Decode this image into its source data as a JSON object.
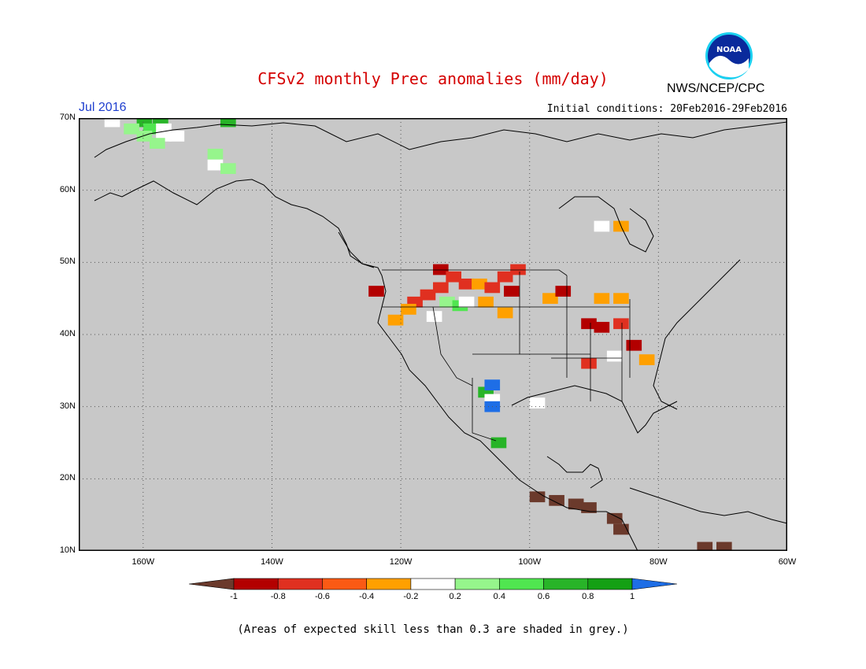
{
  "title": "CFSv2 monthly Prec anomalies (mm/day)",
  "agency": "NWS/NCEP/CPC",
  "logo_text": "NOAA",
  "period": "Jul 2016",
  "initial_conditions": "Initial conditions: 20Feb2016-29Feb2016",
  "footnote": "(Areas of expected skill less than 0.3 are shaded in grey.)",
  "map": {
    "background_color": "#c8c8c8",
    "lon_range": [
      -170,
      -60
    ],
    "lat_range": [
      10,
      70
    ],
    "lat_ticks": [
      {
        "value": 70,
        "label": "70N"
      },
      {
        "value": 60,
        "label": "60N"
      },
      {
        "value": 50,
        "label": "50N"
      },
      {
        "value": 40,
        "label": "40N"
      },
      {
        "value": 30,
        "label": "30N"
      },
      {
        "value": 20,
        "label": "20N"
      },
      {
        "value": 10,
        "label": "10N"
      }
    ],
    "lon_ticks": [
      {
        "value": -160,
        "label": "160W"
      },
      {
        "value": -140,
        "label": "140W"
      },
      {
        "value": -120,
        "label": "120W"
      },
      {
        "value": -100,
        "label": "100W"
      },
      {
        "value": -80,
        "label": "80W"
      },
      {
        "value": -60,
        "label": "60W"
      }
    ],
    "gridlines": "dotted"
  },
  "colorbar": {
    "bins": [
      {
        "color": "#6b3a2c"
      },
      {
        "color": "#b30000"
      },
      {
        "color": "#e03020"
      },
      {
        "color": "#fa5a14"
      },
      {
        "color": "#ffa000"
      },
      {
        "color": "#ffffff"
      },
      {
        "color": "#96f58c"
      },
      {
        "color": "#50e650"
      },
      {
        "color": "#28b428"
      },
      {
        "color": "#14a014"
      },
      {
        "color": "#1e6ee6"
      }
    ],
    "labels": [
      "-1",
      "-0.8",
      "-0.6",
      "-0.4",
      "-0.2",
      "0.2",
      "0.4",
      "0.6",
      "0.8",
      "1"
    ]
  },
  "anomaly_cells": [
    {
      "lon": -165,
      "lat": 69.5,
      "color": "#ffffff"
    },
    {
      "lon": -160,
      "lat": 69.5,
      "color": "#28b428"
    },
    {
      "lon": -157.5,
      "lat": 69.5,
      "color": "#28b428"
    },
    {
      "lon": -147,
      "lat": 70,
      "color": "#50e650"
    },
    {
      "lon": -147,
      "lat": 69.5,
      "color": "#28b428"
    },
    {
      "lon": -162,
      "lat": 68.5,
      "color": "#96f58c"
    },
    {
      "lon": -159,
      "lat": 68.5,
      "color": "#50e650"
    },
    {
      "lon": -157,
      "lat": 68.5,
      "color": "#ffffff"
    },
    {
      "lon": -160,
      "lat": 67.5,
      "color": "#96f58c"
    },
    {
      "lon": -157,
      "lat": 67.5,
      "color": "#ffffff"
    },
    {
      "lon": -155,
      "lat": 67.5,
      "color": "#ffffff"
    },
    {
      "lon": -158,
      "lat": 66.5,
      "color": "#96f58c"
    },
    {
      "lon": -149,
      "lat": 65,
      "color": "#96f58c"
    },
    {
      "lon": -149,
      "lat": 63.5,
      "color": "#ffffff"
    },
    {
      "lon": -147,
      "lat": 63,
      "color": "#96f58c"
    },
    {
      "lon": -114,
      "lat": 49,
      "color": "#b30000"
    },
    {
      "lon": -112,
      "lat": 48,
      "color": "#e03020"
    },
    {
      "lon": -110,
      "lat": 47,
      "color": "#e03020"
    },
    {
      "lon": -108,
      "lat": 47,
      "color": "#ffa000"
    },
    {
      "lon": -106,
      "lat": 46.5,
      "color": "#e03020"
    },
    {
      "lon": -104,
      "lat": 48,
      "color": "#e03020"
    },
    {
      "lon": -102,
      "lat": 49,
      "color": "#e03020"
    },
    {
      "lon": -103,
      "lat": 46,
      "color": "#b30000"
    },
    {
      "lon": -114,
      "lat": 46.5,
      "color": "#e03020"
    },
    {
      "lon": -116,
      "lat": 45.5,
      "color": "#e03020"
    },
    {
      "lon": -118,
      "lat": 44.5,
      "color": "#e03020"
    },
    {
      "lon": -119,
      "lat": 43.5,
      "color": "#ffa000"
    },
    {
      "lon": -121,
      "lat": 42,
      "color": "#ffa000"
    },
    {
      "lon": -124,
      "lat": 46,
      "color": "#b30000"
    },
    {
      "lon": -113,
      "lat": 44.5,
      "color": "#96f58c"
    },
    {
      "lon": -111,
      "lat": 44,
      "color": "#50e650"
    },
    {
      "lon": -110,
      "lat": 44.5,
      "color": "#ffffff"
    },
    {
      "lon": -115,
      "lat": 42.5,
      "color": "#ffffff"
    },
    {
      "lon": -107,
      "lat": 44.5,
      "color": "#ffa000"
    },
    {
      "lon": -104,
      "lat": 43,
      "color": "#ffa000"
    },
    {
      "lon": -97,
      "lat": 45,
      "color": "#ffa000"
    },
    {
      "lon": -95,
      "lat": 46,
      "color": "#b30000"
    },
    {
      "lon": -91,
      "lat": 41.5,
      "color": "#b30000"
    },
    {
      "lon": -89,
      "lat": 41,
      "color": "#b30000"
    },
    {
      "lon": -86,
      "lat": 41.5,
      "color": "#e03020"
    },
    {
      "lon": -91,
      "lat": 36,
      "color": "#e03020"
    },
    {
      "lon": -87,
      "lat": 37,
      "color": "#ffffff"
    },
    {
      "lon": -84,
      "lat": 38.5,
      "color": "#b30000"
    },
    {
      "lon": -86,
      "lat": 45,
      "color": "#ffa000"
    },
    {
      "lon": -89,
      "lat": 45,
      "color": "#ffa000"
    },
    {
      "lon": -82,
      "lat": 36.5,
      "color": "#ffa000"
    },
    {
      "lon": -86,
      "lat": 55,
      "color": "#ffa000"
    },
    {
      "lon": -89,
      "lat": 55,
      "color": "#ffffff"
    },
    {
      "lon": -107,
      "lat": 32,
      "color": "#28b428"
    },
    {
      "lon": -106,
      "lat": 31,
      "color": "#ffffff"
    },
    {
      "lon": -106,
      "lat": 30,
      "color": "#1e6ee6"
    },
    {
      "lon": -106,
      "lat": 33,
      "color": "#1e6ee6"
    },
    {
      "lon": -105,
      "lat": 25,
      "color": "#28b428"
    },
    {
      "lon": -99,
      "lat": 30.5,
      "color": "#ffffff"
    },
    {
      "lon": -99,
      "lat": 17.5,
      "color": "#6b3a2c"
    },
    {
      "lon": -96,
      "lat": 17,
      "color": "#6b3a2c"
    },
    {
      "lon": -93,
      "lat": 16.5,
      "color": "#6b3a2c"
    },
    {
      "lon": -91,
      "lat": 16,
      "color": "#6b3a2c"
    },
    {
      "lon": -87,
      "lat": 14.5,
      "color": "#6b3a2c"
    },
    {
      "lon": -86,
      "lat": 13,
      "color": "#6b3a2c"
    },
    {
      "lon": -73,
      "lat": 10.5,
      "color": "#6b3a2c"
    },
    {
      "lon": -70,
      "lat": 10.5,
      "color": "#6b3a2c"
    }
  ]
}
